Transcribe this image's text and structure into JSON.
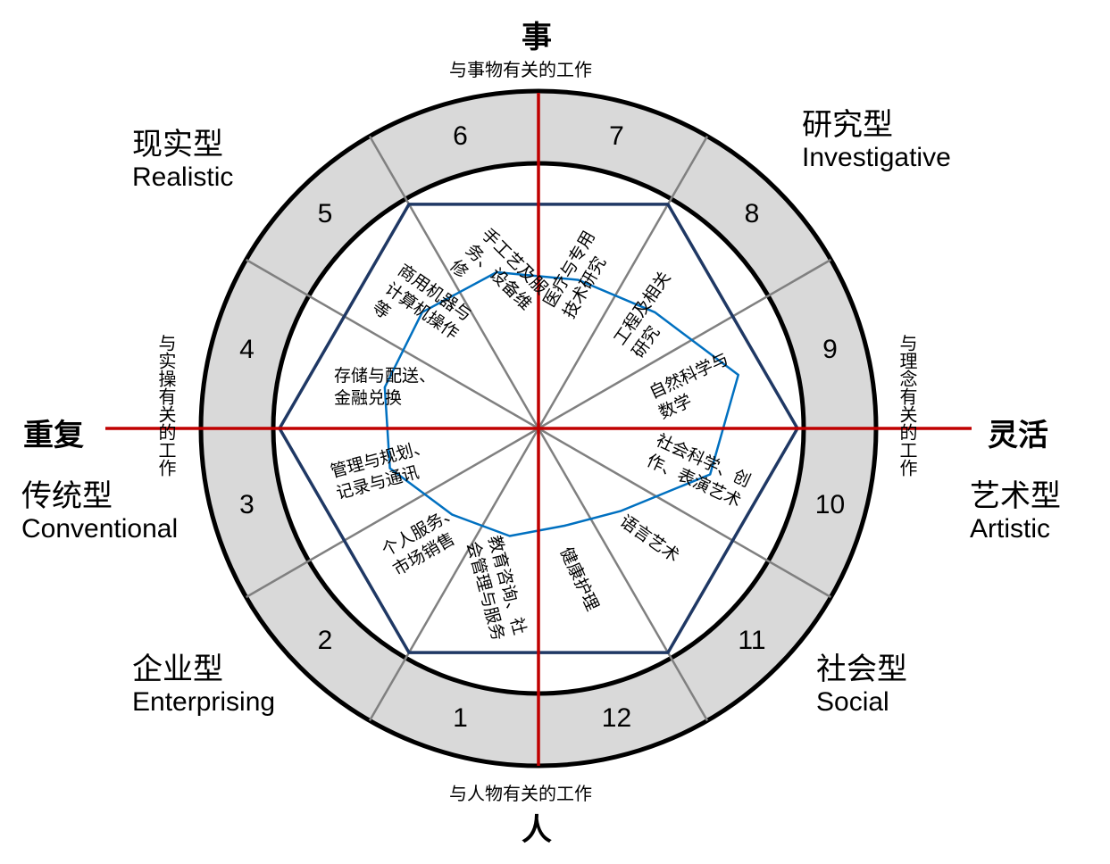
{
  "axes": {
    "top": {
      "label": "事",
      "sub": "与事物有关的工作"
    },
    "bottom": {
      "label": "人",
      "sub": "与人物有关的工作"
    },
    "left": {
      "label": "重复",
      "sub": "与实操有关的工作"
    },
    "right": {
      "label": "灵活",
      "sub": "与理念有关的工作"
    }
  },
  "types": {
    "realistic": {
      "zh": "现实型",
      "en": "Realistic"
    },
    "investigative": {
      "zh": "研究型",
      "en": "Investigative"
    },
    "conventional": {
      "zh": "传统型",
      "en": "Conventional"
    },
    "artistic": {
      "zh": "艺术型",
      "en": "Artistic"
    },
    "enterprising": {
      "zh": "企业型",
      "en": "Enterprising"
    },
    "social": {
      "zh": "社会型",
      "en": "Social"
    }
  },
  "ring_numbers": [
    "1",
    "2",
    "3",
    "4",
    "5",
    "6",
    "7",
    "8",
    "9",
    "10",
    "11",
    "12"
  ],
  "sectors": [
    "手工艺及服\n务、设备维\n修",
    "医疗与专用\n技术研究",
    "工程及相关\n研究",
    "自然科学与\n数学",
    "社会科学、创\n作、表演艺术",
    "语言艺术",
    "健康护理",
    "教育咨询、社\n会管理与服务",
    "个人服务、\n市场销售",
    "管理与规划、\n记录与通讯",
    "存储与配送、\n金融兑换",
    "商用机器与\n计算机操作\n等"
  ],
  "profile_scores": {
    "comment": "relative distance from center (0-1) along each sector's axis, read from the blue profile line",
    "values": [
      0.61,
      0.58,
      0.62,
      0.78,
      0.67,
      0.44,
      0.38,
      0.42,
      0.46,
      0.58,
      0.6,
      0.62
    ]
  },
  "colors": {
    "ring_fill": "#d9d9d9",
    "ring_stroke": "#000000",
    "divider": "#808080",
    "axis": "#c00000",
    "hexagon": "#1f3864",
    "profile": "#0070c0"
  }
}
